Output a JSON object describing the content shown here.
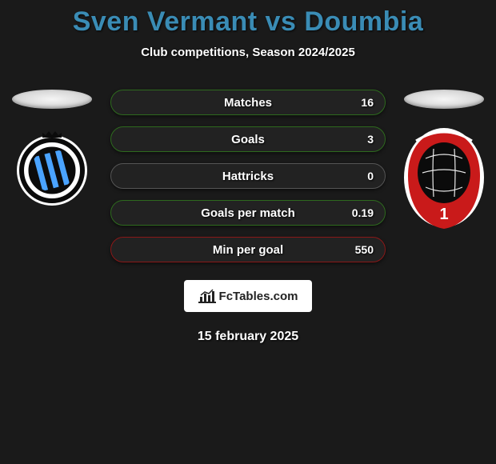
{
  "title": "Sven Vermant vs Doumbia",
  "subtitle": "Club competitions, Season 2024/2025",
  "date": "15 february 2025",
  "branding_text": "FcTables.com",
  "stats": {
    "row_background": "#222222",
    "rows": [
      {
        "label": "Matches",
        "value": "16",
        "border_color": "#2e6a1e"
      },
      {
        "label": "Goals",
        "value": "3",
        "border_color": "#2e6a1e"
      },
      {
        "label": "Hattricks",
        "value": "0",
        "border_color": "#555555"
      },
      {
        "label": "Goals per match",
        "value": "0.19",
        "border_color": "#2e6a1e"
      },
      {
        "label": "Min per goal",
        "value": "550",
        "border_color": "#8a1818"
      }
    ]
  },
  "left_club": {
    "name": "Club Brugge",
    "bg": "#ffffff",
    "ring": "#0b0b0b",
    "stripe": "#4aa3ff",
    "crown": "#0b0b0b"
  },
  "right_club": {
    "name": "Royal Antwerp",
    "bg": "#ffffff",
    "shield": "#c91a1a",
    "inner": "#0b0b0b",
    "text": "#ffffff",
    "number": "1"
  },
  "colors": {
    "page_bg": "#1a1a1a",
    "title": "#3a8cb5",
    "text": "#ffffff"
  }
}
